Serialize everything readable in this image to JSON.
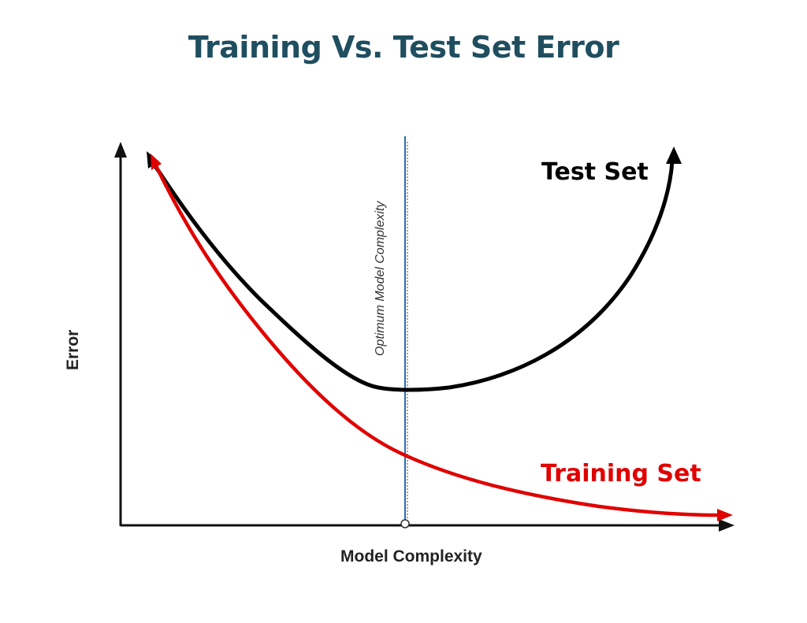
{
  "title": "Training Vs. Test Set Error",
  "colors": {
    "title": "#1f4e5f",
    "test_curve": "#000000",
    "training_curve": "#e00000",
    "optimum_line": "#2a6db5",
    "axes": "#111111"
  },
  "axes": {
    "x_label": "Model Complexity",
    "y_label": "Error"
  },
  "optimum": {
    "label": "Optimum Model Complexity"
  },
  "curves": {
    "test": {
      "label": "Test Set"
    },
    "training": {
      "label": "Training Set"
    }
  }
}
